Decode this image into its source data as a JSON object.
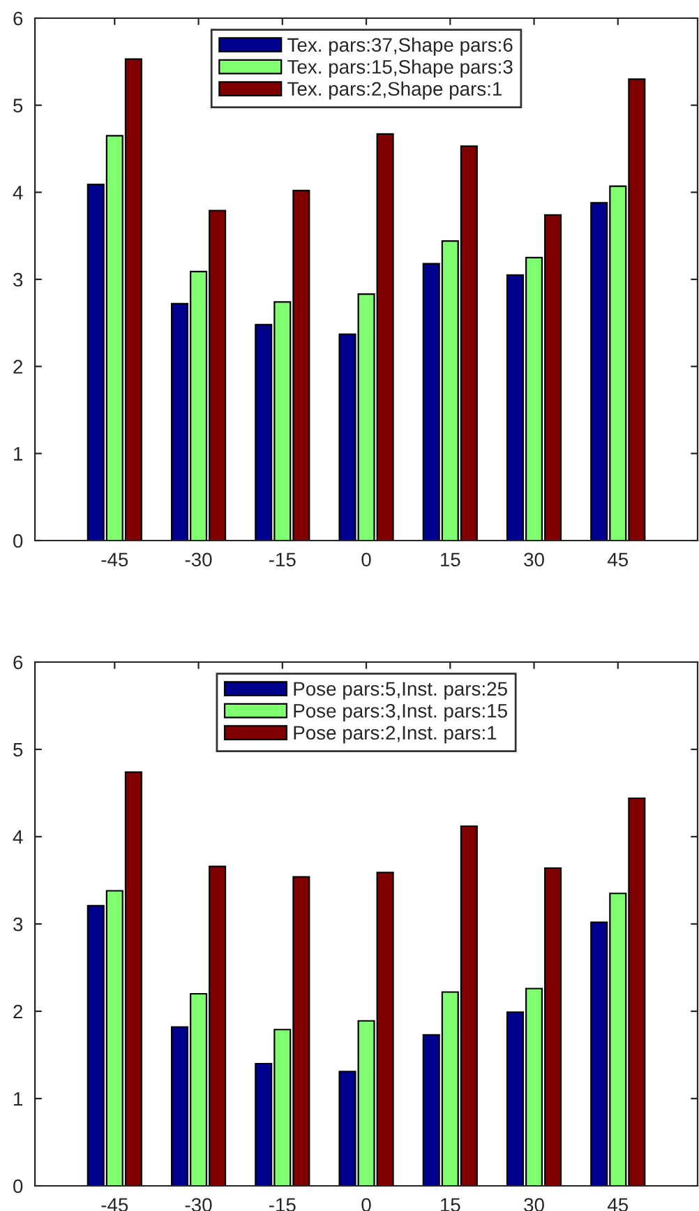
{
  "chart_data": [
    {
      "type": "bar",
      "categories": [
        "-45",
        "-30",
        "-15",
        "0",
        "15",
        "30",
        "45"
      ],
      "ylim": [
        0,
        6
      ],
      "yticks": [
        0,
        1,
        2,
        3,
        4,
        5,
        6
      ],
      "legend": "top",
      "grid": false,
      "series": [
        {
          "name": "Tex. pars:37,Shape pars:6",
          "color": "#00008f",
          "values": [
            4.09,
            2.72,
            2.48,
            2.37,
            3.18,
            3.05,
            3.88
          ]
        },
        {
          "name": "Tex. pars:15,Shape pars:3",
          "color": "#80ff70",
          "values": [
            4.65,
            3.09,
            2.74,
            2.83,
            3.44,
            3.25,
            4.07
          ]
        },
        {
          "name": "Tex. pars:2,Shape pars:1",
          "color": "#800000",
          "values": [
            5.53,
            3.79,
            4.02,
            4.67,
            4.53,
            3.74,
            5.3
          ]
        }
      ]
    },
    {
      "type": "bar",
      "categories": [
        "-45",
        "-30",
        "-15",
        "0",
        "15",
        "30",
        "45"
      ],
      "ylim": [
        0,
        6
      ],
      "yticks": [
        0,
        1,
        2,
        3,
        4,
        5,
        6
      ],
      "legend": "top",
      "grid": false,
      "series": [
        {
          "name": "Pose pars:5,Inst. pars:25",
          "color": "#00008f",
          "values": [
            3.21,
            1.82,
            1.4,
            1.31,
            1.73,
            1.99,
            3.02
          ]
        },
        {
          "name": "Pose pars:3,Inst. pars:15",
          "color": "#80ff70",
          "values": [
            3.38,
            2.2,
            1.79,
            1.89,
            2.22,
            2.26,
            3.35
          ]
        },
        {
          "name": "Pose pars:2,Inst. pars:1",
          "color": "#800000",
          "values": [
            4.74,
            3.66,
            3.54,
            3.59,
            4.12,
            3.64,
            4.44
          ]
        }
      ]
    }
  ]
}
